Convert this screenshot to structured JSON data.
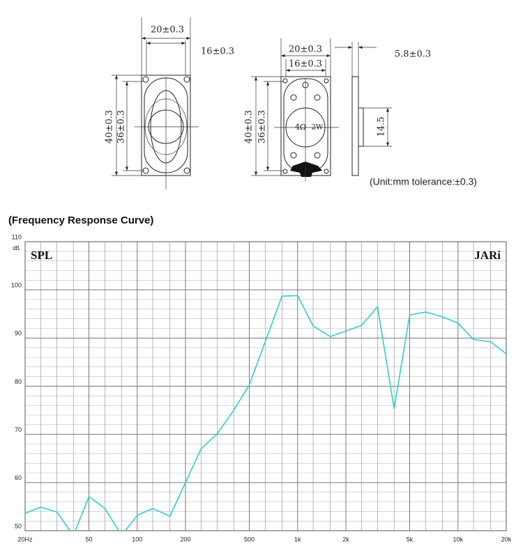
{
  "drawing": {
    "labels": [
      "20±0.3",
      "16±0.3",
      "40±0.3",
      "36±0.3",
      "20±0.3",
      "16±0.3",
      "40±0.3",
      "36±0.3",
      "4Ω",
      "2W",
      "5.8±0.3",
      "14.5"
    ],
    "note": "(Unit:mm    tolerance:±0.3)"
  },
  "chart_data": {
    "type": "line",
    "title": "(Frequency Response Curve)",
    "y_unit": "dB",
    "annotations": [
      "SPL",
      "JARi"
    ],
    "log_x": true,
    "grid": true,
    "color": "#33cccc",
    "x": [
      20,
      25,
      31.5,
      40,
      50,
      63,
      80,
      100,
      125,
      160,
      250,
      315,
      400,
      500,
      800,
      1000,
      1250,
      1600,
      2500,
      3150,
      4000,
      5000,
      6300,
      8000,
      10000,
      12500,
      16000,
      20000
    ],
    "values": [
      53.6,
      54.9,
      53.9,
      49,
      57.1,
      54.6,
      49,
      53.2,
      54.6,
      53.0,
      67.0,
      70.1,
      75.0,
      80.3,
      98.7,
      98.8,
      92.5,
      90.3,
      92.6,
      96.5,
      75.3,
      94.8,
      95.4,
      94.4,
      93.1,
      89.7,
      89.2,
      86.7
    ],
    "xlim": [
      20,
      20000
    ],
    "ylim": [
      50,
      110
    ],
    "xticks": [
      {
        "value": 20,
        "label": "20Hz"
      },
      50,
      100,
      200,
      500,
      {
        "value": 1000,
        "label": "1k"
      },
      {
        "value": 2000,
        "label": "2k"
      },
      {
        "value": 5000,
        "label": "5k"
      },
      {
        "value": 10000,
        "label": "10k"
      },
      {
        "value": 20000,
        "label": "20k"
      }
    ],
    "xminor": [
      25,
      31.5,
      40,
      63,
      80,
      125,
      160,
      250,
      315,
      400,
      630,
      800,
      1250,
      1600,
      2500,
      3150,
      4000,
      6300,
      8000,
      12500,
      16000
    ],
    "yticks": [
      50,
      60,
      70,
      80,
      90,
      100,
      110
    ],
    "yminor": [
      52,
      54,
      56,
      58,
      62,
      64,
      66,
      68,
      72,
      74,
      76,
      78,
      82,
      84,
      86,
      88,
      92,
      94,
      96,
      98,
      102,
      104,
      106,
      108
    ]
  }
}
